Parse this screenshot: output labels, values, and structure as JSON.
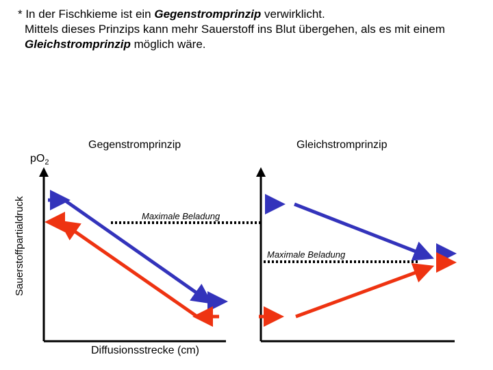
{
  "intro": {
    "line1_pre": "* In der Fischkieme ist ein ",
    "line1_em": "Gegenstromprinzip",
    "line1_post": " verwirklicht.",
    "line2": "Mittels dieses Prinzips kann mehr Sauerstoff ins Blut übergehen, als es mit einem",
    "line3_em": "Gleichstromprinzip",
    "line3_post": " möglich wäre."
  },
  "y_axis": {
    "label": "Sauerstoffpartialdruck",
    "symbol_p": "p",
    "symbol_o": "O",
    "symbol_sub": "2"
  },
  "x_axis": {
    "label": "Diffusionsstrecke  (cm)"
  },
  "panels": {
    "left": {
      "title": "Gegenstromprinzip",
      "max_label": "Maximale Beladung"
    },
    "right": {
      "title": "Gleichstromprinzip",
      "max_label": "Maximale Beladung"
    }
  },
  "colors": {
    "water": "#3333bb",
    "blood": "#ee3311",
    "axis": "#000000",
    "dotted": "#000000"
  }
}
